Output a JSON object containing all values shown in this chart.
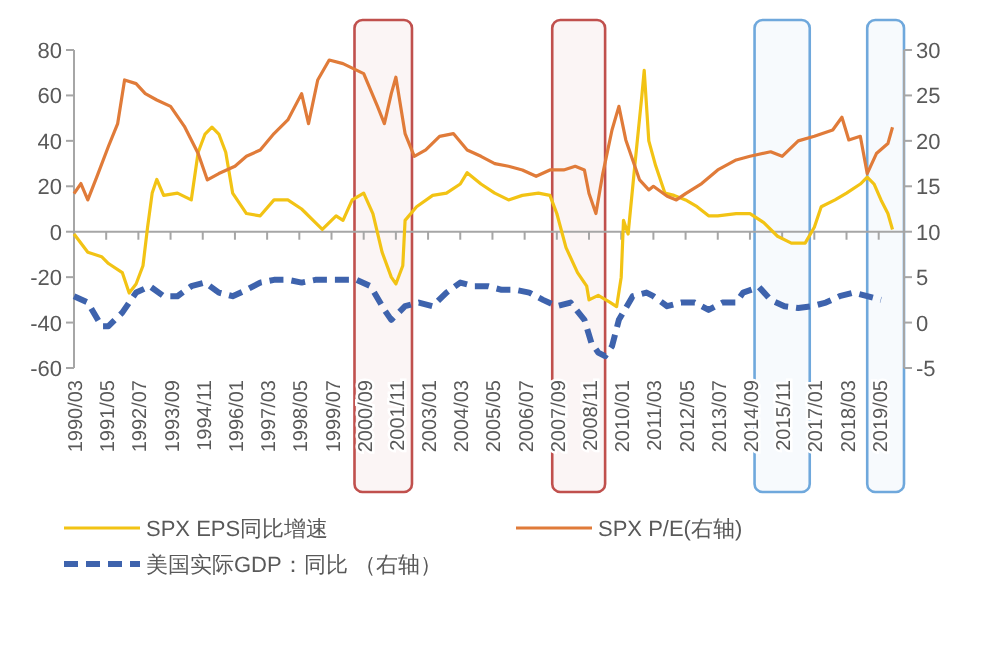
{
  "chart_data": {
    "type": "line",
    "legend": "bottom",
    "ylim": [
      -60,
      80
    ],
    "yticks": [
      -60,
      -40,
      -20,
      0,
      20,
      40,
      60,
      80
    ],
    "y2lim": [
      -5,
      30
    ],
    "y2ticks": [
      -5,
      0,
      5,
      10,
      15,
      20,
      25,
      30
    ],
    "xlim": [
      "1990-03",
      "2020-04"
    ],
    "xticks": [
      {
        "value": "1990-03",
        "label": "1990/03"
      },
      {
        "value": "1991-05",
        "label": "1991/05"
      },
      {
        "value": "1992-07",
        "label": "1992/07"
      },
      {
        "value": "1993-09",
        "label": "1993/09"
      },
      {
        "value": "1994-11",
        "label": "1994/11"
      },
      {
        "value": "1996-01",
        "label": "1996/01"
      },
      {
        "value": "1997-03",
        "label": "1997/03"
      },
      {
        "value": "1998-05",
        "label": "1998/05"
      },
      {
        "value": "1999-07",
        "label": "1999/07"
      },
      {
        "value": "2000-09",
        "label": "2000/09"
      },
      {
        "value": "2001-11",
        "label": "2001/11"
      },
      {
        "value": "2003-01",
        "label": "2003/01"
      },
      {
        "value": "2004-03",
        "label": "2004/03"
      },
      {
        "value": "2005-05",
        "label": "2005/05"
      },
      {
        "value": "2006-07",
        "label": "2006/07"
      },
      {
        "value": "2007-09",
        "label": "2007/09"
      },
      {
        "value": "2008-11",
        "label": "2008/11"
      },
      {
        "value": "2010-01",
        "label": "2010/01"
      },
      {
        "value": "2011-03",
        "label": "2011/03"
      },
      {
        "value": "2012-05",
        "label": "2012/05"
      },
      {
        "value": "2013-07",
        "label": "2013/07"
      },
      {
        "value": "2014-09",
        "label": "2014/09"
      },
      {
        "value": "2015-11",
        "label": "2015/11"
      },
      {
        "value": "2017-01",
        "label": "2017/01"
      },
      {
        "value": "2018-03",
        "label": "2018/03"
      },
      {
        "value": "2019-05",
        "label": "2019/05"
      }
    ],
    "bands": [
      {
        "axis": "x",
        "from": "2000-05",
        "to": "2002-06",
        "color": "#c0504d"
      },
      {
        "axis": "x",
        "from": "2007-07",
        "to": "2009-06",
        "color": "#c0504d"
      },
      {
        "axis": "x",
        "from": "2014-11",
        "to": "2016-11",
        "color": "#6fa8dc"
      },
      {
        "axis": "x",
        "from": "2018-12",
        "to": "2020-04",
        "color": "#6fa8dc"
      }
    ],
    "series": [
      {
        "name": "SPX EPS同比增速",
        "color": "#f2c314",
        "line_style": "solid",
        "x": [
          "1990-03",
          "1990-09",
          "1991-03",
          "1991-06",
          "1991-12",
          "1992-03",
          "1992-06",
          "1992-09",
          "1992-11",
          "1993-01",
          "1993-03",
          "1993-06",
          "1993-12",
          "1994-06",
          "1994-09",
          "1994-12",
          "1995-03",
          "1995-06",
          "1995-09",
          "1995-12",
          "1996-06",
          "1996-12",
          "1997-06",
          "1997-12",
          "1998-06",
          "1998-12",
          "1999-03",
          "1999-09",
          "1999-12",
          "2000-04",
          "2000-09",
          "2001-01",
          "2001-05",
          "2001-09",
          "2001-11",
          "2002-02",
          "2002-03",
          "2002-08",
          "2003-03",
          "2003-09",
          "2004-03",
          "2004-06",
          "2004-12",
          "2005-06",
          "2005-12",
          "2006-06",
          "2007-01",
          "2007-06",
          "2007-09",
          "2008-01",
          "2008-06",
          "2008-10",
          "2008-11",
          "2009-03",
          "2009-08",
          "2009-11",
          "2010-01",
          "2010-02",
          "2010-04",
          "2010-07",
          "2010-10",
          "2010-11",
          "2011-01",
          "2011-04",
          "2011-08",
          "2011-12",
          "2012-05",
          "2012-10",
          "2013-03",
          "2013-07",
          "2014-03",
          "2014-09",
          "2015-03",
          "2015-09",
          "2016-03",
          "2016-09",
          "2017-01",
          "2017-04",
          "2017-10",
          "2018-03",
          "2018-09",
          "2018-12",
          "2019-03",
          "2019-06",
          "2019-09",
          "2019-11"
        ],
        "values": [
          -1,
          -9,
          -11,
          -14,
          -18,
          -27,
          -23,
          -15,
          2,
          17,
          23,
          16,
          17,
          14,
          35,
          43,
          46,
          43,
          35,
          17,
          8,
          7,
          14,
          14,
          10,
          4,
          1,
          7,
          5,
          14,
          17,
          8,
          -9,
          -20,
          -23,
          -15,
          5,
          11,
          16,
          17,
          21,
          26,
          21,
          17,
          14,
          16,
          17,
          16,
          8,
          -7,
          -18,
          -24,
          -30,
          -28,
          -31,
          -33,
          -20,
          5,
          -1,
          30,
          60,
          71,
          40,
          29,
          17,
          16,
          14,
          11,
          7,
          7,
          8,
          8,
          4,
          -2,
          -5,
          -5,
          2,
          11,
          14,
          17,
          21,
          24,
          21,
          14,
          8,
          1
        ]
      },
      {
        "name": "SPX P/E(右轴)",
        "color": "#e07b39",
        "axis": "y2",
        "line_style": "solid",
        "x": [
          "1990-03",
          "1990-06",
          "1990-09",
          "1991-01",
          "1991-06",
          "1991-10",
          "1992-01",
          "1992-06",
          "1992-10",
          "1993-03",
          "1993-09",
          "1994-03",
          "1994-09",
          "1995-01",
          "1995-06",
          "1996-01",
          "1996-06",
          "1996-12",
          "1997-06",
          "1997-12",
          "1998-06",
          "1998-09",
          "1999-01",
          "1999-06",
          "1999-12",
          "2000-09",
          "2001-03",
          "2001-06",
          "2001-09",
          "2001-11",
          "2002-03",
          "2002-07",
          "2002-12",
          "2003-06",
          "2003-12",
          "2004-06",
          "2004-12",
          "2005-06",
          "2005-12",
          "2006-06",
          "2006-12",
          "2007-06",
          "2007-12",
          "2008-05",
          "2008-09",
          "2008-11",
          "2009-02",
          "2009-05",
          "2009-09",
          "2009-12",
          "2010-03",
          "2010-06",
          "2010-09",
          "2011-01",
          "2011-03",
          "2011-09",
          "2012-01",
          "2012-05",
          "2012-12",
          "2013-07",
          "2014-03",
          "2014-09",
          "2015-06",
          "2015-11",
          "2016-06",
          "2017-01",
          "2017-09",
          "2018-01",
          "2018-04",
          "2018-09",
          "2018-12",
          "2019-04",
          "2019-09",
          "2019-11"
        ],
        "values": [
          14.2,
          15.3,
          13.5,
          16.1,
          19.4,
          21.9,
          26.7,
          26.3,
          25.2,
          24.5,
          23.8,
          21.6,
          18.6,
          15.7,
          16.4,
          17.2,
          18.3,
          19.0,
          20.8,
          22.3,
          25.2,
          21.9,
          26.7,
          28.9,
          28.5,
          27.4,
          23.8,
          21.9,
          25.2,
          27.0,
          20.8,
          18.3,
          19.0,
          20.5,
          20.8,
          19.0,
          18.3,
          17.5,
          17.2,
          16.8,
          16.1,
          16.8,
          16.8,
          17.2,
          16.8,
          14.2,
          12.0,
          16.4,
          21.2,
          23.8,
          20.1,
          17.9,
          15.7,
          14.6,
          15.0,
          13.9,
          13.5,
          14.2,
          15.3,
          16.8,
          17.9,
          18.3,
          18.8,
          18.3,
          20.0,
          20.5,
          21.2,
          22.6,
          20.1,
          20.5,
          16.4,
          18.6,
          19.7,
          21.5
        ]
      },
      {
        "name": "美国实际GDP：同比 （右轴）",
        "color": "#3e63ad",
        "axis": "y2",
        "line_style": "dashed",
        "x": [
          "1990-03",
          "1990-09",
          "1991-03",
          "1991-06",
          "1991-12",
          "1992-06",
          "1992-12",
          "1993-06",
          "1993-12",
          "1994-06",
          "1994-12",
          "1995-06",
          "1995-12",
          "1996-06",
          "1996-12",
          "1997-06",
          "1997-12",
          "1998-06",
          "1998-12",
          "1999-06",
          "1999-12",
          "2000-06",
          "2000-12",
          "2001-06",
          "2001-09",
          "2002-03",
          "2002-09",
          "2003-03",
          "2003-09",
          "2004-03",
          "2004-09",
          "2005-03",
          "2005-09",
          "2006-03",
          "2006-09",
          "2007-03",
          "2007-09",
          "2008-03",
          "2008-09",
          "2008-12",
          "2009-03",
          "2009-06",
          "2009-09",
          "2009-12",
          "2010-06",
          "2010-12",
          "2011-03",
          "2011-09",
          "2012-03",
          "2012-09",
          "2013-03",
          "2013-09",
          "2014-03",
          "2014-06",
          "2015-01",
          "2015-06",
          "2015-12",
          "2016-06",
          "2016-12",
          "2017-06",
          "2017-12",
          "2018-06",
          "2018-12",
          "2019-06"
        ],
        "values": [
          2.9,
          2.2,
          -0.4,
          -0.4,
          1.1,
          3.3,
          4.0,
          2.9,
          2.9,
          4.0,
          4.4,
          3.3,
          2.9,
          3.6,
          4.4,
          4.7,
          4.7,
          4.4,
          4.7,
          4.7,
          4.7,
          4.7,
          4.0,
          1.4,
          0.3,
          1.8,
          2.2,
          1.8,
          3.3,
          4.4,
          4.0,
          4.0,
          3.6,
          3.6,
          3.3,
          2.5,
          1.8,
          2.2,
          0.3,
          -2.2,
          -3.3,
          -3.7,
          -2.6,
          0.3,
          2.9,
          3.3,
          2.9,
          1.8,
          2.2,
          2.2,
          1.4,
          2.2,
          2.2,
          3.3,
          3.9,
          2.5,
          1.8,
          1.6,
          1.8,
          2.2,
          2.9,
          3.3,
          2.9,
          2.5
        ]
      }
    ]
  }
}
